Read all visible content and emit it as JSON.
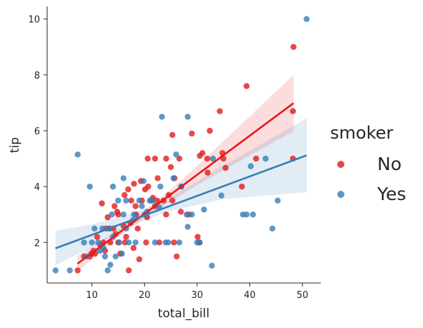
{
  "chart_data": {
    "type": "scatter",
    "xlabel": "total_bill",
    "ylabel": "tip",
    "xlim": [
      1.5,
      53.5
    ],
    "ylim": [
      0.55,
      10.45
    ],
    "xticks": [
      10,
      20,
      30,
      40,
      50
    ],
    "yticks": [
      2,
      4,
      6,
      8,
      10
    ],
    "grid": false,
    "legend": {
      "title": "smoker",
      "placement": "right"
    },
    "series": [
      {
        "name": "No",
        "color": "#e41a1c",
        "points": [
          [
            48.3,
            9.0
          ],
          [
            39.4,
            7.6
          ],
          [
            34.3,
            6.7
          ],
          [
            25.3,
            5.85
          ],
          [
            32.4,
            6.0
          ],
          [
            29.0,
            5.9
          ],
          [
            31.0,
            5.2
          ],
          [
            30.5,
            5.1
          ],
          [
            34.8,
            5.2
          ],
          [
            35.0,
            5.0
          ],
          [
            41.2,
            5.0
          ],
          [
            48.2,
            5.0
          ],
          [
            20.6,
            5.0
          ],
          [
            22.0,
            5.0
          ],
          [
            24.1,
            5.0
          ],
          [
            26.6,
            5.0
          ],
          [
            31.9,
            5.0
          ],
          [
            25.0,
            4.7
          ],
          [
            35.4,
            4.67
          ],
          [
            32.0,
            4.5
          ],
          [
            19.3,
            4.2
          ],
          [
            18.0,
            4.1
          ],
          [
            22.5,
            4.3
          ],
          [
            25.7,
            4.3
          ],
          [
            38.5,
            4.0
          ],
          [
            20.1,
            3.9
          ],
          [
            16.2,
            3.7
          ],
          [
            21.3,
            3.5
          ],
          [
            24.6,
            3.7
          ],
          [
            23.6,
            3.5
          ],
          [
            17.5,
            3.5
          ],
          [
            19.5,
            3.5
          ],
          [
            14.3,
            3.3
          ],
          [
            18.3,
            3.3
          ],
          [
            22.0,
            3.3
          ],
          [
            25.3,
            3.5
          ],
          [
            13.0,
            2.9
          ],
          [
            15.0,
            3.0
          ],
          [
            20.5,
            2.9
          ],
          [
            24.1,
            3.0
          ],
          [
            26.9,
            3.1
          ],
          [
            16.0,
            2.6
          ],
          [
            18.7,
            2.5
          ],
          [
            13.4,
            2.5
          ],
          [
            11.0,
            2.2
          ],
          [
            12.7,
            2.5
          ],
          [
            14.5,
            2.3
          ],
          [
            16.5,
            2.2
          ],
          [
            10.3,
            1.7
          ],
          [
            9.6,
            1.5
          ],
          [
            8.5,
            1.5
          ],
          [
            11.6,
            1.9
          ],
          [
            12.5,
            1.7
          ],
          [
            15.4,
            1.6
          ],
          [
            7.3,
            1.0
          ],
          [
            17.0,
            1.0
          ],
          [
            10.6,
            1.6
          ],
          [
            13.5,
            2.0
          ],
          [
            20.3,
            2.0
          ],
          [
            22.8,
            2.0
          ],
          [
            25.6,
            2.0
          ],
          [
            26.1,
            1.5
          ],
          [
            30.1,
            2.2
          ],
          [
            17.9,
            1.8
          ],
          [
            19.0,
            1.4
          ],
          [
            15.0,
            2.0
          ],
          [
            14.8,
            3.1
          ],
          [
            12.2,
            2.0
          ],
          [
            16.9,
            3.9
          ],
          [
            17.3,
            2.7
          ],
          [
            20.7,
            4.0
          ],
          [
            21.6,
            3.6
          ],
          [
            18.4,
            3.0
          ],
          [
            14.1,
            2.5
          ],
          [
            9.9,
            1.6
          ],
          [
            11.9,
            3.4
          ],
          [
            16.3,
            2.0
          ],
          [
            22.4,
            3.5
          ],
          [
            28.4,
            3.0
          ],
          [
            27.0,
            4.0
          ],
          [
            48.2,
            6.7
          ],
          [
            30.4,
            2.0
          ]
        ]
      },
      {
        "name": "Yes",
        "color": "#377eb8",
        "points": [
          [
            50.8,
            10.0
          ],
          [
            23.3,
            6.5
          ],
          [
            28.2,
            6.5
          ],
          [
            7.3,
            5.15
          ],
          [
            26.0,
            5.15
          ],
          [
            33.0,
            5.0
          ],
          [
            43.0,
            5.0
          ],
          [
            25.5,
            4.3
          ],
          [
            40.2,
            4.73
          ],
          [
            9.6,
            4.0
          ],
          [
            23.0,
            4.0
          ],
          [
            27.0,
            4.0
          ],
          [
            14.0,
            4.0
          ],
          [
            16.0,
            4.3
          ],
          [
            45.3,
            3.5
          ],
          [
            34.6,
            3.68
          ],
          [
            38.7,
            3.0
          ],
          [
            39.4,
            3.0
          ],
          [
            40.6,
            3.0
          ],
          [
            31.3,
            3.18
          ],
          [
            28.0,
            3.0
          ],
          [
            29.0,
            3.0
          ],
          [
            18.0,
            3.0
          ],
          [
            20.0,
            3.0
          ],
          [
            21.5,
            3.5
          ],
          [
            22.8,
            3.25
          ],
          [
            15.0,
            3.5
          ],
          [
            13.8,
            3.0
          ],
          [
            16.5,
            3.5
          ],
          [
            19.0,
            3.5
          ],
          [
            44.3,
            2.5
          ],
          [
            28.2,
            2.56
          ],
          [
            30.0,
            2.0
          ],
          [
            30.5,
            2.0
          ],
          [
            24.0,
            2.0
          ],
          [
            26.6,
            2.0
          ],
          [
            12.0,
            2.5
          ],
          [
            13.3,
            2.5
          ],
          [
            17.0,
            2.0
          ],
          [
            10.0,
            2.0
          ],
          [
            11.2,
            2.0
          ],
          [
            12.5,
            1.5
          ],
          [
            14.5,
            1.5
          ],
          [
            15.7,
            1.6
          ],
          [
            9.0,
            1.5
          ],
          [
            8.5,
            2.0
          ],
          [
            3.1,
            1.0
          ],
          [
            5.8,
            1.0
          ],
          [
            13.0,
            1.0
          ],
          [
            13.5,
            1.2
          ],
          [
            32.8,
            1.17
          ],
          [
            18.3,
            2.0
          ],
          [
            16.5,
            2.5
          ],
          [
            20.5,
            3.1
          ],
          [
            19.8,
            4.2
          ],
          [
            21.0,
            3.5
          ],
          [
            22.0,
            2.0
          ],
          [
            24.5,
            2.0
          ],
          [
            15.2,
            2.0
          ],
          [
            11.5,
            1.7
          ],
          [
            10.5,
            2.5
          ],
          [
            12.2,
            1.8
          ],
          [
            14.0,
            2.2
          ],
          [
            16.0,
            3.0
          ],
          [
            17.8,
            2.8
          ],
          [
            19.5,
            3.3
          ]
        ]
      }
    ],
    "regression": [
      {
        "name": "No",
        "x": [
          7.25,
          48.33
        ],
        "y": [
          1.24,
          6.99
        ],
        "ci": [
          [
            7.25,
            0.95,
            1.53
          ],
          [
            15,
            2.18,
            2.46
          ],
          [
            20,
            2.88,
            3.12
          ],
          [
            25,
            3.47,
            3.9
          ],
          [
            30,
            4.06,
            4.74
          ],
          [
            40,
            5.12,
            6.52
          ],
          [
            48.33,
            5.98,
            8.0
          ]
        ]
      },
      {
        "name": "Yes",
        "x": [
          3.07,
          50.81
        ],
        "y": [
          1.79,
          5.12
        ],
        "ci": [
          [
            3.07,
            1.18,
            2.42
          ],
          [
            10,
            1.84,
            2.65
          ],
          [
            15,
            2.35,
            2.9
          ],
          [
            20,
            2.79,
            3.2
          ],
          [
            25,
            3.13,
            3.62
          ],
          [
            35,
            3.55,
            4.75
          ],
          [
            50.81,
            3.8,
            6.45
          ]
        ]
      }
    ]
  }
}
